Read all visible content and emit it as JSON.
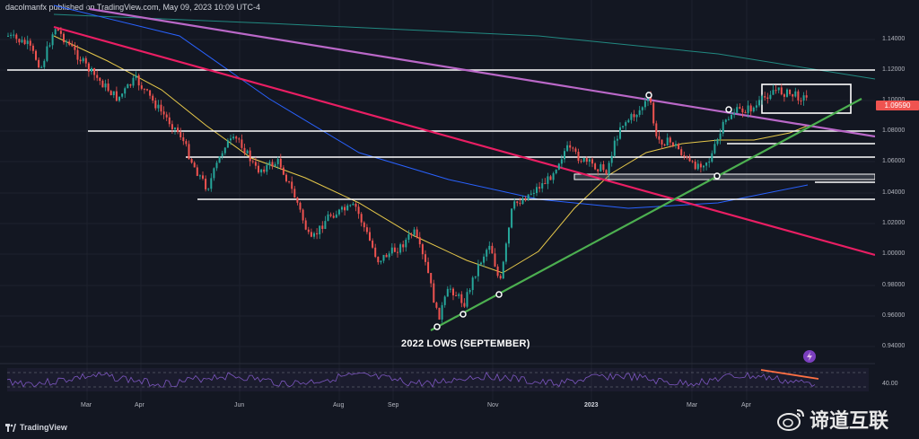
{
  "header": {
    "publisher": "dacolmanfx published on TradingView.com, May 09, 2023 10:09 UTC-4"
  },
  "price_axis": {
    "ticks": [
      "1.14000",
      "1.12000",
      "1.10000",
      "1.08000",
      "1.06000",
      "1.04000",
      "1.02000",
      "1.00000",
      "0.98000",
      "0.96000",
      "0.94000"
    ],
    "current_price": "1.09590",
    "current_price_color": "#ef5350"
  },
  "rsi": {
    "level_label": "40.00"
  },
  "time_axis": {
    "months": [
      "Mar",
      "Apr",
      "Jun",
      "Aug",
      "Sep",
      "Nov",
      "2023",
      "Mar",
      "Apr"
    ]
  },
  "annotation": {
    "lows_label": "2022 LOWS (SEPTEMBER)"
  },
  "footer": {
    "brand": "TradingView"
  },
  "watermark": {
    "text": "谛道互联"
  },
  "icons": {
    "alert": "lightning-icon",
    "logo": "tradingview-logo-icon",
    "watermark": "weibo-icon"
  },
  "colors": {
    "background": "#131722",
    "bull_candle": "#26a69a",
    "bear_candle": "#ef5350",
    "ma_fast": "#e6c84a",
    "ma_mid": "#2962ff",
    "ma_slow": "#26a69a",
    "trend_magenta": "#e91e63",
    "trend_purple": "#ba68c8",
    "trend_green": "#4caf50",
    "support_lines": "#ffffff"
  }
}
